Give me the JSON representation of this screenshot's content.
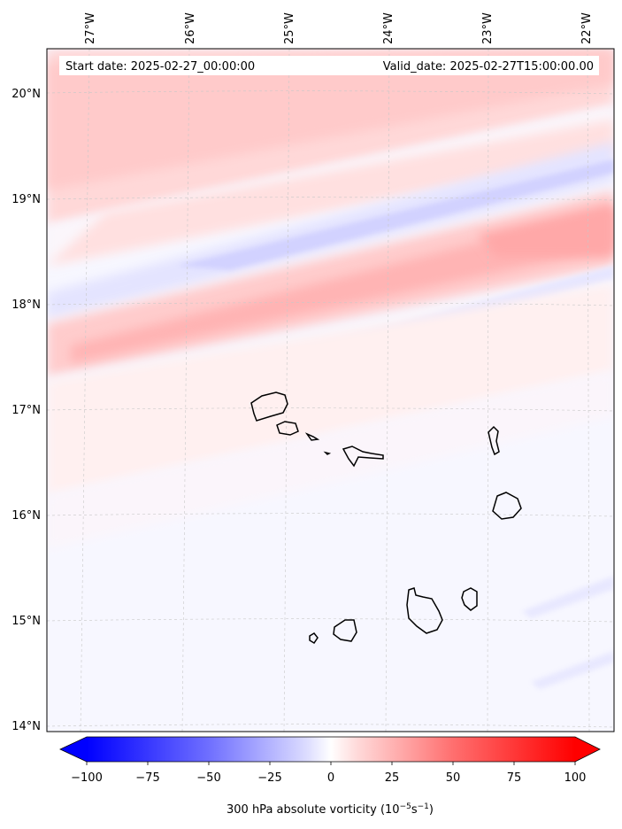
{
  "map": {
    "start_label": "Start date: 2025-02-27_00:00:00",
    "valid_label": "Valid_date: 2025-02-27T15:00:00.00",
    "lon_labels": [
      "27°W",
      "26°W",
      "25°W",
      "24°W",
      "23°W",
      "22°W"
    ],
    "lat_labels": [
      "20°N",
      "19°N",
      "18°N",
      "17°N",
      "16°N",
      "15°N",
      "14°N"
    ],
    "gridlines": true,
    "features": [
      "Cape Verde islands coastline"
    ]
  },
  "colorbar": {
    "ticks": [
      "−100",
      "−75",
      "−50",
      "−25",
      "0",
      "25",
      "50",
      "75",
      "100"
    ],
    "label_main": "300 hPa absolute vorticity (10",
    "label_exp1": "−5",
    "label_mid": "s",
    "label_exp2": "−1",
    "label_end": ")",
    "vmin": -100,
    "vmax": 100,
    "extend": "both",
    "colors": {
      "low": "#0000ff",
      "mid": "#ffffff",
      "high": "#ff0000"
    }
  }
}
